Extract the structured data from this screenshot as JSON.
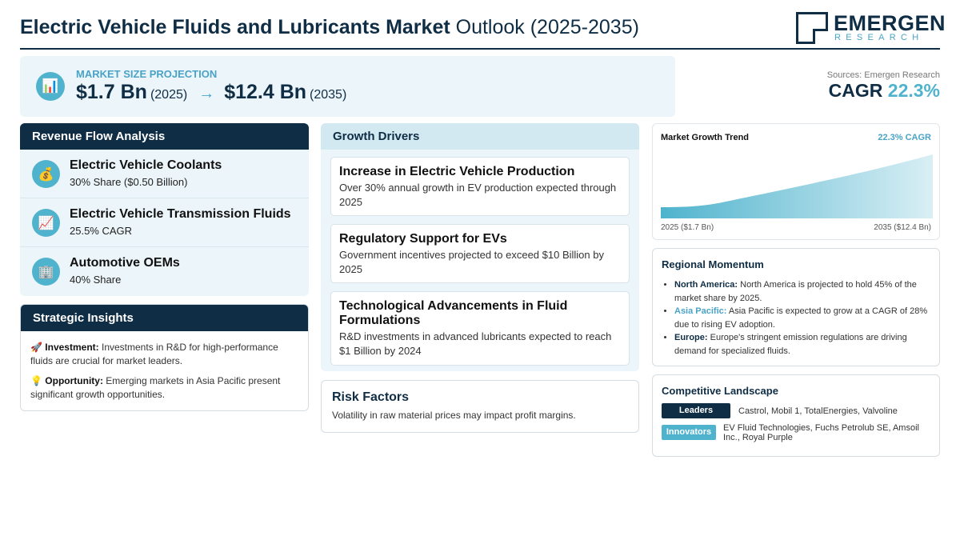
{
  "header": {
    "title_bold": "Electric Vehicle Fluids and Lubricants Market",
    "title_rest": "Outlook (2025-2035)",
    "logo_main": "EMERGEN",
    "logo_sub": "RESEARCH"
  },
  "projection": {
    "label": "MARKET SIZE PROJECTION",
    "start_value": "$1.7 Bn",
    "start_year": "(2025)",
    "arrow": "→",
    "end_value": "$12.4 Bn",
    "end_year": "(2035)",
    "icon": "chart-icon"
  },
  "source": "Sources: Emergen Research",
  "cagr": {
    "label": "CAGR",
    "value": "22.3%"
  },
  "revenue": {
    "heading": "Revenue Flow Analysis",
    "items": [
      {
        "title": "Electric Vehicle Coolants",
        "sub": "30% Share ($0.50 Billion)",
        "icon": "money-bag-icon"
      },
      {
        "title": "Electric Vehicle Transmission Fluids",
        "sub": "25.5% CAGR",
        "icon": "trend-chart-icon"
      },
      {
        "title": "Automotive OEMs",
        "sub": "40% Share",
        "icon": "building-icon"
      }
    ]
  },
  "strategic": {
    "heading": "Strategic Insights",
    "investment_label": "Investment:",
    "investment_text": "Investments in R&D for high-performance fluids are crucial for market leaders.",
    "opportunity_label": "Opportunity:",
    "opportunity_text": "Emerging markets in Asia Pacific present significant growth opportunities."
  },
  "drivers": {
    "heading": "Growth Drivers",
    "items": [
      {
        "title": "Increase in Electric Vehicle Production",
        "text": "Over 30% annual growth in EV production expected through 2025"
      },
      {
        "title": "Regulatory Support for EVs",
        "text": "Government incentives projected to exceed $10 Billion by 2025"
      },
      {
        "title": "Technological Advancements in Fluid Formulations",
        "text": "R&D investments in advanced lubricants expected to reach $1 Billion by 2024"
      }
    ]
  },
  "risk": {
    "heading": "Risk Factors",
    "text": "Volatility in raw material prices may impact profit margins."
  },
  "trend": {
    "title": "Market Growth Trend",
    "cagr_label": "22.3% CAGR",
    "start_label": "2025 ($1.7 Bn)",
    "end_label": "2035 ($12.4 Bn)"
  },
  "chart_data": {
    "type": "area",
    "x": [
      2025,
      2035
    ],
    "values": [
      1.7,
      12.4
    ],
    "title": "Market Growth Trend",
    "color": "#4fb3cd"
  },
  "regional": {
    "heading": "Regional Momentum",
    "items": [
      {
        "region": "North America:",
        "text": "North America is projected to hold 45% of the market share by 2025."
      },
      {
        "region": "Asia Pacific:",
        "text": "Asia Pacific is expected to grow at a CAGR of 28% due to rising EV adoption."
      },
      {
        "region": "Europe:",
        "text": "Europe's stringent emission regulations are driving demand for specialized fluids."
      }
    ]
  },
  "competitive": {
    "heading": "Competitive Landscape",
    "leaders_label": "Leaders",
    "leaders": "Castrol, Mobil 1, TotalEnergies, Valvoline",
    "innovators_label": "Innovators",
    "innovators_line1": "EV Fluid Technologies, Fuchs Petrolub SE, Amsoil",
    "innovators_line2": "Inc., Royal Purple"
  },
  "colors": {
    "navy": "#0f2d44",
    "accent": "#4fb3cd",
    "panel": "#ecf5f9"
  }
}
